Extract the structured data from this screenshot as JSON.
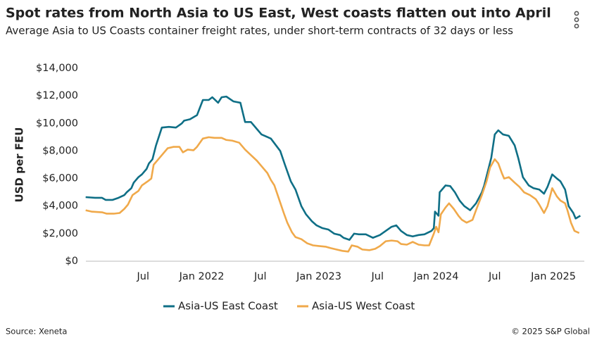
{
  "chart_data": {
    "type": "line",
    "title": "Spot rates from North Asia to US East, West coasts flatten out into April",
    "subtitle": "Average Asia to US Coasts container freight rates, under short-term contracts of 32 days or less",
    "ylabel": "USD per FEU",
    "source": "Source: Xeneta",
    "credit": "© 2025 S&P Global",
    "xlim": [
      2021.0,
      2025.3
    ],
    "xticks": [
      {
        "value": 2021.5,
        "label": "Jul"
      },
      {
        "value": 2022,
        "label": "Jan 2022"
      },
      {
        "value": 2022.5,
        "label": "Jul"
      },
      {
        "value": 2023,
        "label": "Jan 2023"
      },
      {
        "value": 2023.5,
        "label": "Jul"
      },
      {
        "value": 2024,
        "label": "Jan 2024"
      },
      {
        "value": 2024.5,
        "label": "Jul"
      },
      {
        "value": 2025,
        "label": "Jan 2025"
      }
    ],
    "ylim": [
      0,
      14000
    ],
    "yticks": [
      {
        "value": 0,
        "label": "$0"
      },
      {
        "value": 2000,
        "label": "$2,000"
      },
      {
        "value": 4000,
        "label": "$4,000"
      },
      {
        "value": 6000,
        "label": "$6,000"
      },
      {
        "value": 8000,
        "label": "$8,000"
      },
      {
        "value": 10000,
        "label": "$10,000"
      },
      {
        "value": 12000,
        "label": "$12,000"
      },
      {
        "value": 14000,
        "label": "$14,000"
      }
    ],
    "grid": false,
    "legend": "bottom",
    "series": [
      {
        "name": "Asia-US East Coast",
        "color": "#0f6f86",
        "x": [
          2021.01,
          2021.09,
          2021.15,
          2021.18,
          2021.24,
          2021.29,
          2021.34,
          2021.36,
          2021.4,
          2021.42,
          2021.46,
          2021.49,
          2021.53,
          2021.55,
          2021.58,
          2021.61,
          2021.66,
          2021.72,
          2021.78,
          2021.83,
          2021.85,
          2021.9,
          2021.96,
          2022.01,
          2022.06,
          2022.09,
          2022.14,
          2022.17,
          2022.21,
          2022.27,
          2022.33,
          2022.37,
          2022.42,
          2022.47,
          2022.51,
          2022.59,
          2022.67,
          2022.71,
          2022.76,
          2022.8,
          2022.85,
          2022.89,
          2022.94,
          2022.98,
          2023.03,
          2023.08,
          2023.13,
          2023.18,
          2023.21,
          2023.26,
          2023.3,
          2023.34,
          2023.4,
          2023.46,
          2023.52,
          2023.57,
          2023.62,
          2023.66,
          2023.7,
          2023.75,
          2023.8,
          2023.85,
          2023.9,
          2023.96,
          2023.98,
          2023.99,
          2024.02,
          2024.03,
          2024.08,
          2024.12,
          2024.16,
          2024.2,
          2024.24,
          2024.29,
          2024.34,
          2024.39,
          2024.41,
          2024.44,
          2024.47,
          2024.5,
          2024.53,
          2024.57,
          2024.62,
          2024.67,
          2024.7,
          2024.74,
          2024.79,
          2024.83,
          2024.88,
          2024.92,
          2024.95,
          2024.99,
          2025.03,
          2025.06,
          2025.1,
          2025.13,
          2025.17,
          2025.19,
          2025.23
        ],
        "values": [
          4650,
          4600,
          4600,
          4450,
          4450,
          4600,
          4800,
          5000,
          5300,
          5700,
          6100,
          6300,
          6700,
          7100,
          7400,
          8400,
          9700,
          9750,
          9700,
          10000,
          10200,
          10300,
          10600,
          11700,
          11700,
          11900,
          11500,
          11900,
          11950,
          11600,
          11500,
          10100,
          10100,
          9600,
          9200,
          8900,
          8000,
          7000,
          5800,
          5200,
          4000,
          3400,
          2900,
          2600,
          2400,
          2300,
          2000,
          1900,
          1700,
          1550,
          2000,
          1950,
          1950,
          1700,
          1900,
          2200,
          2500,
          2600,
          2200,
          1900,
          1800,
          1900,
          1950,
          2200,
          2400,
          3600,
          3300,
          5000,
          5500,
          5450,
          5000,
          4400,
          4000,
          3700,
          4200,
          5000,
          5500,
          6500,
          7500,
          9200,
          9500,
          9200,
          9100,
          8400,
          7500,
          6100,
          5500,
          5300,
          5200,
          4900,
          5400,
          6300,
          6000,
          5800,
          5200,
          4000,
          3500,
          3100,
          3300
        ]
      },
      {
        "name": "Asia-US West Coast",
        "color": "#f0a94a",
        "x": [
          2021.01,
          2021.06,
          2021.15,
          2021.19,
          2021.25,
          2021.3,
          2021.34,
          2021.37,
          2021.41,
          2021.46,
          2021.49,
          2021.54,
          2021.57,
          2021.59,
          2021.63,
          2021.66,
          2021.71,
          2021.76,
          2021.81,
          2021.84,
          2021.88,
          2021.93,
          2021.96,
          2022.01,
          2022.06,
          2022.11,
          2022.17,
          2022.21,
          2022.26,
          2022.32,
          2022.37,
          2022.42,
          2022.47,
          2022.51,
          2022.56,
          2022.59,
          2022.62,
          2022.66,
          2022.7,
          2022.73,
          2022.77,
          2022.8,
          2022.85,
          2022.9,
          2022.95,
          2023.0,
          2023.06,
          2023.1,
          2023.15,
          2023.2,
          2023.25,
          2023.28,
          2023.33,
          2023.37,
          2023.43,
          2023.48,
          2023.52,
          2023.57,
          2023.62,
          2023.67,
          2023.7,
          2023.75,
          2023.8,
          2023.85,
          2023.9,
          2023.94,
          2023.98,
          2024.0,
          2024.02,
          2024.04,
          2024.08,
          2024.11,
          2024.15,
          2024.19,
          2024.22,
          2024.26,
          2024.31,
          2024.34,
          2024.39,
          2024.43,
          2024.46,
          2024.5,
          2024.53,
          2024.56,
          2024.58,
          2024.62,
          2024.67,
          2024.71,
          2024.75,
          2024.8,
          2024.85,
          2024.88,
          2024.92,
          2024.95,
          2024.99,
          2025.03,
          2025.06,
          2025.1,
          2025.12,
          2025.15,
          2025.18,
          2025.22
        ],
        "values": [
          3700,
          3600,
          3550,
          3450,
          3450,
          3500,
          3800,
          4100,
          4800,
          5100,
          5500,
          5800,
          6000,
          7000,
          7400,
          7700,
          8200,
          8300,
          8300,
          7900,
          8100,
          8050,
          8300,
          8900,
          9000,
          8950,
          8950,
          8800,
          8750,
          8600,
          8100,
          7700,
          7300,
          6900,
          6400,
          5900,
          5500,
          4500,
          3500,
          2800,
          2100,
          1750,
          1600,
          1300,
          1150,
          1100,
          1050,
          950,
          850,
          750,
          700,
          1150,
          1050,
          850,
          800,
          900,
          1100,
          1450,
          1500,
          1450,
          1250,
          1200,
          1400,
          1200,
          1150,
          1150,
          2000,
          2500,
          2100,
          3400,
          3900,
          4200,
          3800,
          3300,
          3000,
          2800,
          3000,
          3700,
          4800,
          5800,
          6800,
          7400,
          7100,
          6400,
          6000,
          6100,
          5700,
          5400,
          5000,
          4800,
          4500,
          4100,
          3500,
          4000,
          5300,
          4700,
          4400,
          4200,
          3700,
          2800,
          2200,
          2050
        ]
      }
    ]
  }
}
